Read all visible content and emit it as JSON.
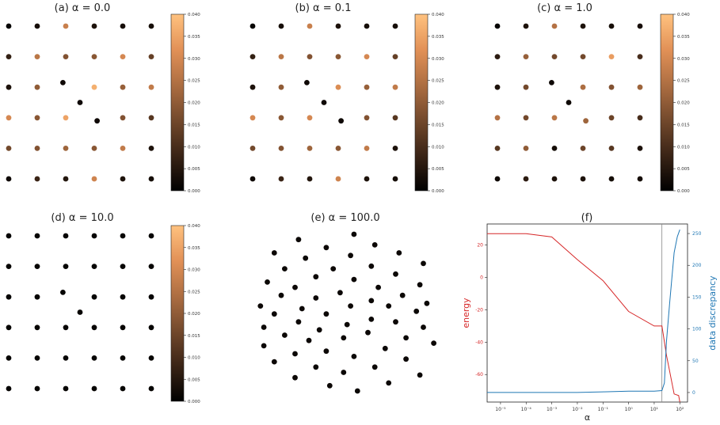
{
  "panels": [
    {
      "title": "(a) α = 0.0",
      "type": "scatter",
      "colorbar": true
    },
    {
      "title": "(b) α = 0.1",
      "type": "scatter",
      "colorbar": true
    },
    {
      "title": "(c) α = 1.0",
      "type": "scatter",
      "colorbar": true
    },
    {
      "title": "(d) α = 10.0",
      "type": "scatter",
      "colorbar": true
    },
    {
      "title": "(e) α = 100.0",
      "type": "scatter",
      "colorbar": false
    },
    {
      "title": "(f)",
      "type": "line",
      "colorbar": false
    }
  ],
  "colorbar": {
    "ticks": [
      "0.000",
      "0.005",
      "0.010",
      "0.015",
      "0.020",
      "0.025",
      "0.030",
      "0.035",
      "0.040"
    ],
    "range": [
      0,
      0.04
    ],
    "colormap": [
      "#000000",
      "#3a2416",
      "#73492c",
      "#ad6e42",
      "#e29157",
      "#ffc27f"
    ]
  },
  "chart_data": [
    {
      "type": "scatter",
      "title": "(a) α = 0.0",
      "colorbar_range": [
        0,
        0.04
      ],
      "points_xy_value": [
        [
          0.0,
          0.0,
          0.001
        ],
        [
          1.0,
          0.0,
          0.003
        ],
        [
          2.0,
          0.0,
          0.028
        ],
        [
          3.0,
          0.0,
          0.004
        ],
        [
          4.0,
          0.0,
          0.003
        ],
        [
          5.0,
          0.0,
          0.003
        ],
        [
          0.0,
          1.0,
          0.007
        ],
        [
          1.0,
          1.0,
          0.026
        ],
        [
          2.0,
          1.0,
          0.018
        ],
        [
          3.0,
          1.0,
          0.019
        ],
        [
          4.0,
          1.0,
          0.03
        ],
        [
          5.0,
          1.0,
          0.014
        ],
        [
          0.0,
          2.0,
          0.004
        ],
        [
          1.0,
          2.0,
          0.02
        ],
        [
          1.9,
          1.85,
          0.002
        ],
        [
          3.0,
          2.0,
          0.037
        ],
        [
          4.0,
          2.0,
          0.021
        ],
        [
          5.0,
          2.0,
          0.027
        ],
        [
          2.5,
          2.5,
          0.002
        ],
        [
          0.0,
          3.0,
          0.03
        ],
        [
          1.0,
          3.0,
          0.019
        ],
        [
          2.0,
          3.0,
          0.035
        ],
        [
          3.1,
          3.1,
          0.002
        ],
        [
          4.0,
          3.0,
          0.018
        ],
        [
          5.0,
          3.0,
          0.012
        ],
        [
          0.0,
          4.0,
          0.016
        ],
        [
          1.0,
          4.0,
          0.018
        ],
        [
          2.0,
          4.0,
          0.022
        ],
        [
          3.0,
          4.0,
          0.019
        ],
        [
          4.0,
          4.0,
          0.027
        ],
        [
          5.0,
          4.0,
          0.004
        ],
        [
          0.0,
          5.0,
          0.002
        ],
        [
          1.0,
          5.0,
          0.008
        ],
        [
          2.0,
          5.0,
          0.005
        ],
        [
          3.0,
          5.0,
          0.029
        ],
        [
          4.0,
          5.0,
          0.004
        ],
        [
          5.0,
          5.0,
          0.003
        ]
      ]
    },
    {
      "type": "scatter",
      "title": "(b) α = 0.1",
      "colorbar_range": [
        0,
        0.04
      ],
      "points_xy_value": [
        [
          0.0,
          0.0,
          0.001
        ],
        [
          1.0,
          0.0,
          0.003
        ],
        [
          2.0,
          0.0,
          0.028
        ],
        [
          3.0,
          0.0,
          0.004
        ],
        [
          4.0,
          0.0,
          0.003
        ],
        [
          5.0,
          0.0,
          0.003
        ],
        [
          0.0,
          1.0,
          0.007
        ],
        [
          1.0,
          1.0,
          0.026
        ],
        [
          2.0,
          1.0,
          0.018
        ],
        [
          3.0,
          1.0,
          0.019
        ],
        [
          4.0,
          1.0,
          0.03
        ],
        [
          5.0,
          1.0,
          0.014
        ],
        [
          0.0,
          2.0,
          0.004
        ],
        [
          1.0,
          2.0,
          0.02
        ],
        [
          1.9,
          1.85,
          0.002
        ],
        [
          3.0,
          2.0,
          0.031
        ],
        [
          4.0,
          2.0,
          0.021
        ],
        [
          5.0,
          2.0,
          0.027
        ],
        [
          2.5,
          2.5,
          0.002
        ],
        [
          0.0,
          3.0,
          0.03
        ],
        [
          1.0,
          3.0,
          0.019
        ],
        [
          2.0,
          3.0,
          0.03
        ],
        [
          3.1,
          3.1,
          0.002
        ],
        [
          4.0,
          3.0,
          0.018
        ],
        [
          5.0,
          3.0,
          0.012
        ],
        [
          0.0,
          4.0,
          0.016
        ],
        [
          1.0,
          4.0,
          0.018
        ],
        [
          2.0,
          4.0,
          0.022
        ],
        [
          3.0,
          4.0,
          0.019
        ],
        [
          4.0,
          4.0,
          0.027
        ],
        [
          5.0,
          4.0,
          0.004
        ],
        [
          0.0,
          5.0,
          0.002
        ],
        [
          1.0,
          5.0,
          0.008
        ],
        [
          2.0,
          5.0,
          0.005
        ],
        [
          3.0,
          5.0,
          0.029
        ],
        [
          4.0,
          5.0,
          0.004
        ],
        [
          5.0,
          5.0,
          0.003
        ]
      ]
    },
    {
      "type": "scatter",
      "title": "(c) α = 1.0",
      "colorbar_range": [
        0,
        0.04
      ],
      "points_xy_value": [
        [
          0.0,
          0.0,
          0.001
        ],
        [
          1.0,
          0.0,
          0.004
        ],
        [
          2.0,
          0.0,
          0.025
        ],
        [
          3.0,
          0.0,
          0.004
        ],
        [
          4.0,
          0.0,
          0.003
        ],
        [
          5.0,
          0.0,
          0.003
        ],
        [
          0.0,
          1.0,
          0.006
        ],
        [
          1.0,
          1.0,
          0.021
        ],
        [
          2.0,
          1.0,
          0.016
        ],
        [
          3.0,
          1.0,
          0.016
        ],
        [
          4.0,
          1.0,
          0.034
        ],
        [
          5.0,
          1.0,
          0.01
        ],
        [
          0.0,
          2.0,
          0.004
        ],
        [
          1.0,
          2.0,
          0.016
        ],
        [
          1.9,
          1.85,
          0.002
        ],
        [
          3.0,
          2.0,
          0.024
        ],
        [
          4.0,
          2.0,
          0.018
        ],
        [
          5.0,
          2.0,
          0.022
        ],
        [
          2.5,
          2.5,
          0.002
        ],
        [
          0.0,
          3.0,
          0.025
        ],
        [
          1.0,
          3.0,
          0.016
        ],
        [
          2.0,
          3.0,
          0.026
        ],
        [
          3.1,
          3.1,
          0.022
        ],
        [
          4.0,
          3.0,
          0.015
        ],
        [
          5.0,
          3.0,
          0.01
        ],
        [
          0.0,
          4.0,
          0.012
        ],
        [
          1.0,
          4.0,
          0.02
        ],
        [
          2.0,
          4.0,
          0.003
        ],
        [
          3.0,
          4.0,
          0.015
        ],
        [
          4.0,
          4.0,
          0.012
        ],
        [
          5.0,
          4.0,
          0.004
        ],
        [
          0.0,
          5.0,
          0.002
        ],
        [
          1.0,
          5.0,
          0.006
        ],
        [
          2.0,
          5.0,
          0.004
        ],
        [
          3.0,
          5.0,
          0.004
        ],
        [
          4.0,
          5.0,
          0.003
        ],
        [
          5.0,
          5.0,
          0.003
        ]
      ]
    },
    {
      "type": "scatter",
      "title": "(d) α = 10.0",
      "colorbar_range": [
        0,
        0.04
      ],
      "points_xy_value": [
        [
          0.0,
          0.0,
          0.001
        ],
        [
          1.0,
          0.0,
          0.001
        ],
        [
          2.0,
          0.0,
          0.001
        ],
        [
          3.0,
          0.0,
          0.001
        ],
        [
          4.0,
          0.0,
          0.001
        ],
        [
          5.0,
          0.0,
          0.001
        ],
        [
          0.0,
          1.0,
          0.001
        ],
        [
          1.0,
          1.0,
          0.001
        ],
        [
          2.0,
          1.0,
          0.001
        ],
        [
          3.0,
          1.0,
          0.001
        ],
        [
          4.0,
          1.0,
          0.001
        ],
        [
          5.0,
          1.0,
          0.001
        ],
        [
          0.0,
          2.0,
          0.001
        ],
        [
          1.0,
          2.0,
          0.001
        ],
        [
          1.9,
          1.85,
          0.001
        ],
        [
          3.0,
          2.0,
          0.001
        ],
        [
          4.0,
          2.0,
          0.001
        ],
        [
          5.0,
          2.0,
          0.001
        ],
        [
          2.5,
          2.5,
          0.001
        ],
        [
          0.0,
          3.0,
          0.001
        ],
        [
          1.0,
          3.0,
          0.001
        ],
        [
          2.0,
          3.0,
          0.001
        ],
        [
          3.0,
          3.0,
          0.001
        ],
        [
          4.0,
          3.0,
          0.001
        ],
        [
          5.0,
          3.0,
          0.001
        ],
        [
          0.0,
          4.0,
          0.001
        ],
        [
          1.0,
          4.0,
          0.001
        ],
        [
          2.0,
          4.0,
          0.001
        ],
        [
          3.0,
          4.0,
          0.001
        ],
        [
          4.0,
          4.0,
          0.001
        ],
        [
          5.0,
          4.0,
          0.001
        ],
        [
          0.0,
          5.0,
          0.001
        ],
        [
          1.0,
          5.0,
          0.001
        ],
        [
          2.0,
          5.0,
          0.001
        ],
        [
          3.0,
          5.0,
          0.001
        ],
        [
          4.0,
          5.0,
          0.001
        ],
        [
          5.0,
          5.0,
          0.001
        ]
      ]
    },
    {
      "type": "scatter",
      "title": "(e) α = 100.0",
      "note": "points collapsed into a compact rotated hexagonal cluster, all near-zero values",
      "points_xy_value": [
        [
          3.0,
          -0.3,
          0.001
        ],
        [
          2.2,
          -0.1,
          0.001
        ],
        [
          3.9,
          0.0,
          0.001
        ],
        [
          1.2,
          0.2,
          0.001
        ],
        [
          4.8,
          0.3,
          0.001
        ],
        [
          2.6,
          0.4,
          0.001
        ],
        [
          1.8,
          0.6,
          0.001
        ],
        [
          3.5,
          0.6,
          0.001
        ],
        [
          0.6,
          0.8,
          0.001
        ],
        [
          4.4,
          0.9,
          0.001
        ],
        [
          2.9,
          1.0,
          0.001
        ],
        [
          1.2,
          1.1,
          0.001
        ],
        [
          2.1,
          1.2,
          0.001
        ],
        [
          3.8,
          1.3,
          0.001
        ],
        [
          0.3,
          1.4,
          0.001
        ],
        [
          5.2,
          1.5,
          0.001
        ],
        [
          1.6,
          1.6,
          0.001
        ],
        [
          2.6,
          1.7,
          0.001
        ],
        [
          4.4,
          1.7,
          0.001
        ],
        [
          0.9,
          1.8,
          0.001
        ],
        [
          3.3,
          1.9,
          0.001
        ],
        [
          1.9,
          2.0,
          0.001
        ],
        [
          4.9,
          2.1,
          0.001
        ],
        [
          0.3,
          2.1,
          0.001
        ],
        [
          2.7,
          2.2,
          0.001
        ],
        [
          1.3,
          2.3,
          0.001
        ],
        [
          4.1,
          2.3,
          0.001
        ],
        [
          3.4,
          2.4,
          0.001
        ],
        [
          0.6,
          2.6,
          0.001
        ],
        [
          2.1,
          2.6,
          0.001
        ],
        [
          4.7,
          2.7,
          0.001
        ],
        [
          1.4,
          2.8,
          0.001
        ],
        [
          3.9,
          2.9,
          0.001
        ],
        [
          2.8,
          2.9,
          0.001
        ],
        [
          0.2,
          2.9,
          0.001
        ],
        [
          5.0,
          3.0,
          0.001
        ],
        [
          3.4,
          3.1,
          0.001
        ],
        [
          1.8,
          3.2,
          0.001
        ],
        [
          0.8,
          3.3,
          0.001
        ],
        [
          4.3,
          3.3,
          0.001
        ],
        [
          2.5,
          3.4,
          0.001
        ],
        [
          1.2,
          3.6,
          0.001
        ],
        [
          3.6,
          3.6,
          0.001
        ],
        [
          4.8,
          3.7,
          0.001
        ],
        [
          0.4,
          3.8,
          0.001
        ],
        [
          2.9,
          3.9,
          0.001
        ],
        [
          1.8,
          4.0,
          0.001
        ],
        [
          4.1,
          4.1,
          0.001
        ],
        [
          0.9,
          4.3,
          0.001
        ],
        [
          2.3,
          4.3,
          0.001
        ],
        [
          3.4,
          4.4,
          0.001
        ],
        [
          4.9,
          4.5,
          0.001
        ],
        [
          1.5,
          4.7,
          0.001
        ],
        [
          2.8,
          4.8,
          0.001
        ],
        [
          4.2,
          4.9,
          0.001
        ],
        [
          0.6,
          4.9,
          0.001
        ],
        [
          2.1,
          5.1,
          0.001
        ],
        [
          3.5,
          5.2,
          0.001
        ],
        [
          1.3,
          5.4,
          0.001
        ],
        [
          2.9,
          5.6,
          0.001
        ]
      ]
    },
    {
      "type": "line",
      "title": "(f)",
      "xlabel": "α",
      "ylabel_left": "energy",
      "ylabel_right": "data discrepancy",
      "xscale": "log",
      "x_tick_labels": [
        "10⁻⁵",
        "10⁻⁴",
        "10⁻³",
        "10⁻²",
        "10⁻¹",
        "10⁰",
        "10¹",
        "10²"
      ],
      "x_ticks": [
        1e-05,
        0.0001,
        0.001,
        0.01,
        0.1,
        1,
        10,
        100
      ],
      "xlim": [
        3e-06,
        200
      ],
      "left_yticks": [
        20,
        0,
        -20,
        -40,
        -60
      ],
      "left_ylim": [
        -77,
        33
      ],
      "right_yticks": [
        250,
        200,
        150,
        100,
        50,
        0
      ],
      "right_ylim": [
        -15,
        265
      ],
      "vline_x": 20,
      "series": [
        {
          "name": "energy",
          "axis": "left",
          "color": "#d62728",
          "x": [
            3e-06,
            0.0001,
            0.001,
            0.01,
            0.1,
            1,
            10,
            20,
            30,
            60,
            90,
            100
          ],
          "y": [
            27,
            27,
            25,
            11,
            -2,
            -21,
            -30,
            -30,
            -48,
            -72,
            -73,
            -77
          ]
        },
        {
          "name": "data discrepancy",
          "axis": "right",
          "color": "#1f77b4",
          "x": [
            3e-06,
            0.0001,
            0.001,
            0.01,
            0.1,
            1,
            10,
            20,
            25,
            30,
            40,
            60,
            80,
            100
          ],
          "y": [
            0,
            0,
            0,
            0,
            1,
            2,
            2,
            3,
            15,
            80,
            140,
            220,
            245,
            256
          ]
        }
      ]
    }
  ]
}
